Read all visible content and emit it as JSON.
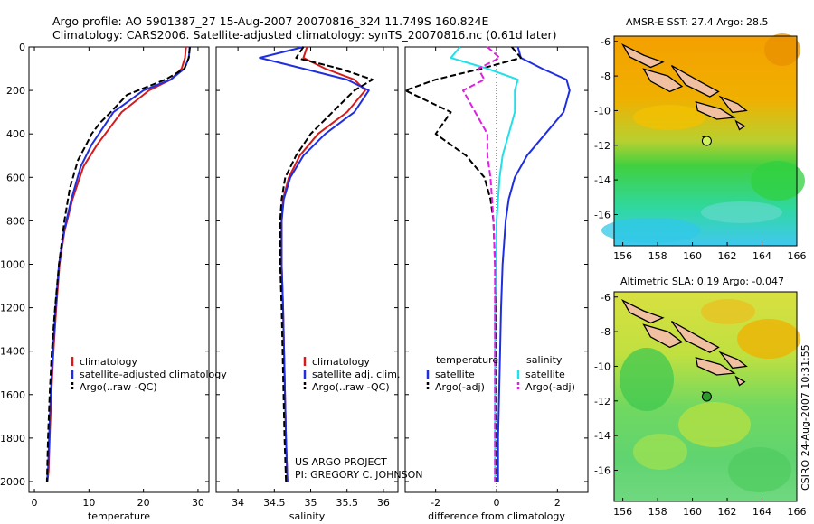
{
  "header": {
    "line1": "Argo profile: AO 5901387_27 15-Aug-2007 20070816_324 11.749S 160.824E",
    "line2": "Climatology: CARS2006. Satellite-adjusted climatology: synTS_20070816.nc (0.61d later)"
  },
  "credit": {
    "line1": "US ARGO PROJECT",
    "line2": "PI: GREGORY C. JOHNSON"
  },
  "side_label": "CSIRO 24-Aug-2007 10:31:55",
  "colors": {
    "climatology": "#d61a1a",
    "satellite": "#1f2fe0",
    "argo": "#000000",
    "satellite_salinity": "#22e0e8",
    "argo_salinity": "#e020e0"
  },
  "chart_data": [
    {
      "type": "line",
      "xlabel": "temperature",
      "xlim": [
        -1,
        32
      ],
      "ylim": [
        2050,
        0
      ],
      "xticks": [
        0,
        10,
        20,
        30
      ],
      "yticks": [
        0,
        200,
        400,
        600,
        800,
        1000,
        1200,
        1400,
        1600,
        1800,
        2000
      ],
      "legend": [
        "climatology",
        "satellite-adjusted climatology",
        "Argo(..raw -QC)"
      ],
      "series": [
        {
          "name": "climatology",
          "style": "solid",
          "x": [
            27.8,
            27.6,
            27.0,
            25.0,
            21.0,
            16.0,
            11.5,
            9.0,
            7.0,
            5.5,
            4.6,
            4.0,
            3.5,
            3.1,
            2.8,
            2.6,
            2.4
          ],
          "y": [
            0,
            50,
            100,
            150,
            200,
            300,
            450,
            550,
            700,
            850,
            1000,
            1200,
            1400,
            1600,
            1800,
            1950,
            2000
          ]
        },
        {
          "name": "satellite-adjusted climatology",
          "style": "solid",
          "x": [
            28.5,
            28.3,
            27.5,
            25.0,
            20.0,
            14.5,
            10.5,
            8.5,
            6.8,
            5.4,
            4.5,
            3.9,
            3.4,
            3.0,
            2.7,
            2.5,
            2.3
          ],
          "y": [
            0,
            50,
            100,
            150,
            200,
            300,
            450,
            550,
            700,
            850,
            1000,
            1200,
            1400,
            1600,
            1800,
            1950,
            2000
          ]
        },
        {
          "name": "Argo(..raw -QC)",
          "style": "dashed",
          "x": [
            28.5,
            28.3,
            27.5,
            24.0,
            17.0,
            14.0,
            12.0,
            10.5,
            9.5,
            8.0,
            6.5,
            5.5,
            4.5,
            3.8,
            3.2,
            2.8,
            2.5,
            2.3
          ],
          "y": [
            0,
            50,
            100,
            150,
            220,
            300,
            350,
            400,
            450,
            520,
            650,
            800,
            1000,
            1200,
            1400,
            1600,
            1800,
            2000
          ]
        }
      ]
    },
    {
      "type": "line",
      "xlabel": "salinity",
      "xlim": [
        33.7,
        36.2
      ],
      "ylim": [
        2050,
        0
      ],
      "xticks": [
        34,
        34.5,
        35,
        35.5,
        36
      ],
      "legend": [
        "climatology",
        "satellite adj. clim.",
        "Argo(..raw -QC)"
      ],
      "series": [
        {
          "name": "climatology",
          "style": "solid",
          "x": [
            34.95,
            34.9,
            35.2,
            35.6,
            35.75,
            35.5,
            35.1,
            34.85,
            34.7,
            34.62,
            34.6,
            34.6,
            34.62,
            34.64,
            34.66,
            34.68
          ],
          "y": [
            0,
            50,
            100,
            150,
            200,
            300,
            400,
            500,
            600,
            700,
            800,
            1000,
            1200,
            1500,
            1800,
            2000
          ]
        },
        {
          "name": "satellite adj. clim.",
          "style": "solid",
          "x": [
            34.9,
            34.3,
            34.9,
            35.5,
            35.8,
            35.6,
            35.2,
            34.9,
            34.72,
            34.63,
            34.6,
            34.6,
            34.62,
            34.64,
            34.66,
            34.68
          ],
          "y": [
            0,
            50,
            100,
            150,
            200,
            300,
            400,
            500,
            600,
            700,
            800,
            1000,
            1200,
            1500,
            1800,
            2000
          ]
        },
        {
          "name": "Argo(..raw -QC)",
          "style": "dashed",
          "x": [
            34.9,
            34.8,
            35.4,
            35.85,
            35.6,
            35.3,
            35.0,
            34.8,
            34.65,
            34.6,
            34.58,
            34.58,
            34.6,
            34.62,
            34.64,
            34.66
          ],
          "y": [
            0,
            50,
            100,
            150,
            200,
            300,
            400,
            500,
            600,
            700,
            800,
            1000,
            1200,
            1500,
            1800,
            2000
          ]
        }
      ]
    },
    {
      "type": "line",
      "xlabel": "difference from climatology",
      "xlim": [
        -3,
        3
      ],
      "ylim": [
        2050,
        0
      ],
      "xticks": [
        -2,
        0,
        2
      ],
      "legend_left": {
        "heading": "temperature",
        "items": [
          "satellite",
          "Argo(-adj)"
        ]
      },
      "legend_right": {
        "heading": "salinity",
        "items": [
          "satellite",
          "Argo(-adj)"
        ]
      },
      "series": [
        {
          "name": "temperature satellite",
          "style": "solid",
          "x": [
            0.7,
            0.8,
            1.5,
            2.3,
            2.4,
            2.2,
            1.6,
            1.0,
            0.6,
            0.4,
            0.3,
            0.2,
            0.15,
            0.1,
            0.05,
            0.05
          ],
          "y": [
            0,
            50,
            100,
            150,
            200,
            300,
            400,
            500,
            600,
            700,
            800,
            1000,
            1200,
            1500,
            1800,
            2000
          ]
        },
        {
          "name": "temperature Argo(-adj)",
          "style": "dashed",
          "x": [
            0.5,
            0.8,
            -0.5,
            -2.0,
            -3.0,
            -1.5,
            -2.0,
            -1.0,
            -0.4,
            -0.2,
            -0.1,
            -0.05,
            0,
            0,
            0,
            0
          ],
          "y": [
            0,
            50,
            100,
            150,
            200,
            300,
            400,
            500,
            600,
            700,
            800,
            1000,
            1200,
            1500,
            1800,
            2000
          ]
        },
        {
          "name": "salinity satellite",
          "style": "solid",
          "x": [
            -1.2,
            -1.5,
            -0.3,
            0.7,
            0.6,
            0.6,
            0.4,
            0.2,
            0.1,
            0.05,
            0,
            0,
            -0.05,
            -0.05,
            -0.05,
            -0.05
          ],
          "y": [
            0,
            50,
            100,
            150,
            200,
            300,
            400,
            500,
            600,
            700,
            800,
            1000,
            1200,
            1500,
            1800,
            2000
          ]
        },
        {
          "name": "salinity Argo(-adj)",
          "style": "dashed",
          "x": [
            -0.3,
            0.1,
            -0.6,
            -0.4,
            -1.1,
            -0.7,
            -0.3,
            -0.3,
            -0.2,
            -0.15,
            -0.1,
            -0.05,
            -0.05,
            -0.05,
            -0.05,
            -0.05
          ],
          "y": [
            0,
            50,
            100,
            150,
            200,
            300,
            400,
            500,
            600,
            700,
            800,
            1000,
            1200,
            1500,
            1800,
            2000
          ]
        }
      ]
    },
    {
      "type": "heatmap",
      "title": "AMSR-E SST: 27.4 Argo: 28.5",
      "xlim": [
        155.5,
        166
      ],
      "ylim": [
        -17.8,
        -5.7
      ],
      "xticks": [
        156,
        158,
        160,
        162,
        164,
        166
      ],
      "yticks": [
        -6,
        -8,
        -10,
        -12,
        -14,
        -16
      ],
      "marker": {
        "lon": 160.824,
        "lat": -11.749,
        "color": "#d0f060"
      }
    },
    {
      "type": "heatmap",
      "title": "Altimetric SLA: 0.19 Argo: -0.047",
      "xlim": [
        155.5,
        166
      ],
      "ylim": [
        -17.8,
        -5.7
      ],
      "xticks": [
        156,
        158,
        160,
        162,
        164,
        166
      ],
      "yticks": [
        -6,
        -8,
        -10,
        -12,
        -14,
        -16
      ],
      "marker": {
        "lon": 160.824,
        "lat": -11.749,
        "color": "#2a9a2a"
      }
    }
  ]
}
